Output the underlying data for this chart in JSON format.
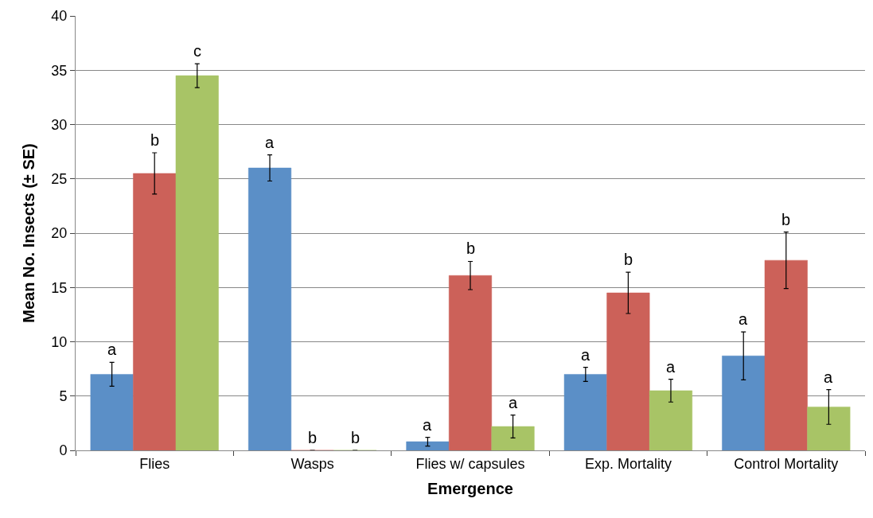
{
  "chart_data": {
    "type": "bar",
    "xlabel": "Emergence",
    "ylabel": "Mean No. Insects (± SE)",
    "categories": [
      "Flies",
      "Wasps",
      "Flies w/ capsules",
      "Exp. Mortality",
      "Control Mortality"
    ],
    "series": [
      {
        "color": "#5b8fc7",
        "values": [
          7,
          26,
          0.8,
          7,
          8.7
        ],
        "errors": [
          1.1,
          1.2,
          0.4,
          0.65,
          2.2
        ],
        "value_labels": [
          "a",
          "a",
          "a",
          "a",
          "a"
        ]
      },
      {
        "color": "#cc6159",
        "values": [
          25.5,
          0,
          16.1,
          14.5,
          17.5
        ],
        "errors": [
          1.9,
          null,
          1.3,
          1.9,
          2.6
        ],
        "value_labels": [
          "b",
          "b",
          "b",
          "b",
          "b"
        ]
      },
      {
        "color": "#a8c466",
        "values": [
          34.5,
          0,
          2.2,
          5.5,
          4
        ],
        "errors": [
          1.1,
          null,
          1.05,
          1.05,
          1.6
        ],
        "value_labels": [
          "c",
          "b",
          "a",
          "a",
          "a"
        ]
      }
    ],
    "ylim": [
      0,
      40
    ],
    "yticks": [
      0,
      5,
      10,
      15,
      20,
      25,
      30,
      35,
      40
    ],
    "grid": "y"
  }
}
